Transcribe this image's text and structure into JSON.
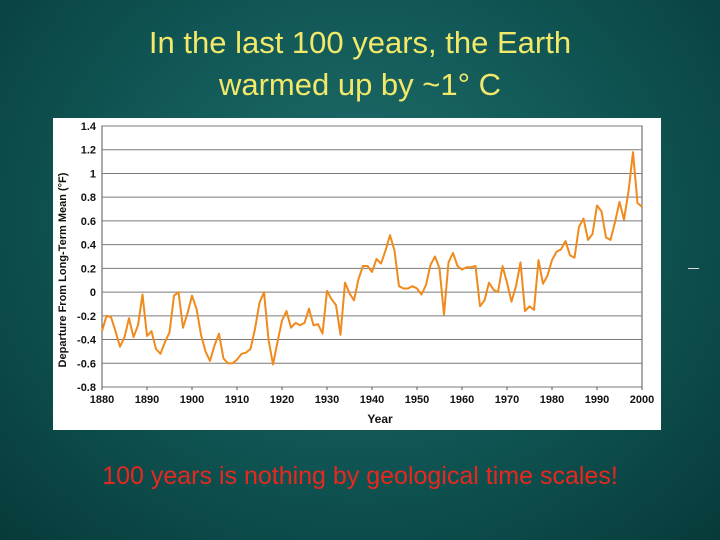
{
  "slide": {
    "title_line1": "In the last 100 years, the Earth",
    "title_line2": "warmed up by ~1° C",
    "footer": "100 years is nothing by geological time scales!"
  },
  "colors": {
    "title": "#f2e86a",
    "footer": "#e8281f",
    "line": "#f08a1c",
    "background": "#0f5452"
  },
  "chart_data": {
    "type": "line",
    "title": "",
    "xlabel": "Year",
    "ylabel": "Departure From Long-Term Mean (°F)",
    "xlim": [
      1880,
      2000
    ],
    "ylim": [
      -0.8,
      1.4
    ],
    "grid": true,
    "xticks": [
      "1880",
      "1890",
      "1900",
      "1910",
      "1920",
      "1930",
      "1940",
      "1950",
      "1960",
      "1970",
      "1980",
      "1990",
      "2000"
    ],
    "yticks": [
      "1.4",
      "1.2",
      "1",
      "0.8",
      "0.6",
      "0.4",
      "0.2",
      "0",
      "-0.2",
      "-0.4",
      "-0.6",
      "-0.8"
    ],
    "series": [
      {
        "x": [
          1880,
          1881,
          1882,
          1883,
          1884,
          1885,
          1886,
          1887,
          1888,
          1889,
          1890,
          1891,
          1892,
          1893,
          1894,
          1895,
          1896,
          1897,
          1898,
          1899,
          1900,
          1901,
          1902,
          1903,
          1904,
          1905,
          1906,
          1907,
          1908,
          1909,
          1910,
          1911,
          1912,
          1913,
          1914,
          1915,
          1916,
          1917,
          1918,
          1919,
          1920,
          1921,
          1922,
          1923,
          1924,
          1925,
          1926,
          1927,
          1928,
          1929,
          1930,
          1931,
          1932,
          1933,
          1934,
          1935,
          1936,
          1937,
          1938,
          1939,
          1940,
          1941,
          1942,
          1943,
          1944,
          1945,
          1946,
          1947,
          1948,
          1949,
          1950,
          1951,
          1952,
          1953,
          1954,
          1955,
          1956,
          1957,
          1958,
          1959,
          1960,
          1961,
          1962,
          1963,
          1964,
          1965,
          1966,
          1967,
          1968,
          1969,
          1970,
          1971,
          1972,
          1973,
          1974,
          1975,
          1976,
          1977,
          1978,
          1979,
          1980,
          1981,
          1982,
          1983,
          1984,
          1985,
          1986,
          1987,
          1988,
          1989,
          1990,
          1991,
          1992,
          1993,
          1994,
          1995,
          1996,
          1997,
          1998,
          1999,
          2000
        ],
        "values": [
          -0.33,
          -0.2,
          -0.21,
          -0.33,
          -0.46,
          -0.38,
          -0.22,
          -0.38,
          -0.28,
          -0.02,
          -0.37,
          -0.33,
          -0.48,
          -0.52,
          -0.42,
          -0.34,
          -0.03,
          0,
          -0.3,
          -0.18,
          -0.03,
          -0.14,
          -0.36,
          -0.5,
          -0.58,
          -0.45,
          -0.35,
          -0.56,
          -0.6,
          -0.6,
          -0.57,
          -0.52,
          -0.51,
          -0.48,
          -0.31,
          -0.09,
          0,
          -0.4,
          -0.61,
          -0.42,
          -0.24,
          -0.16,
          -0.3,
          -0.26,
          -0.28,
          -0.26,
          -0.14,
          -0.28,
          -0.27,
          -0.35,
          0.01,
          -0.06,
          -0.11,
          -0.36,
          0.08,
          -0.01,
          -0.07,
          0.11,
          0.22,
          0.22,
          0.17,
          0.28,
          0.24,
          0.35,
          0.48,
          0.35,
          0.05,
          0.03,
          0.03,
          0.05,
          0.03,
          -0.02,
          0.06,
          0.23,
          0.3,
          0.2,
          -0.19,
          0.25,
          0.33,
          0.22,
          0.19,
          0.21,
          0.21,
          0.22,
          -0.12,
          -0.07,
          0.08,
          0.02,
          0,
          0.22,
          0.08,
          -0.08,
          0.05,
          0.25,
          -0.16,
          -0.12,
          -0.15,
          0.27,
          0.07,
          0.14,
          0.27,
          0.34,
          0.36,
          0.43,
          0.31,
          0.29,
          0.55,
          0.62,
          0.44,
          0.49,
          0.73,
          0.68,
          0.46,
          0.44,
          0.59,
          0.76,
          0.61,
          0.85,
          1.18,
          0.75,
          0.72
        ]
      }
    ]
  }
}
